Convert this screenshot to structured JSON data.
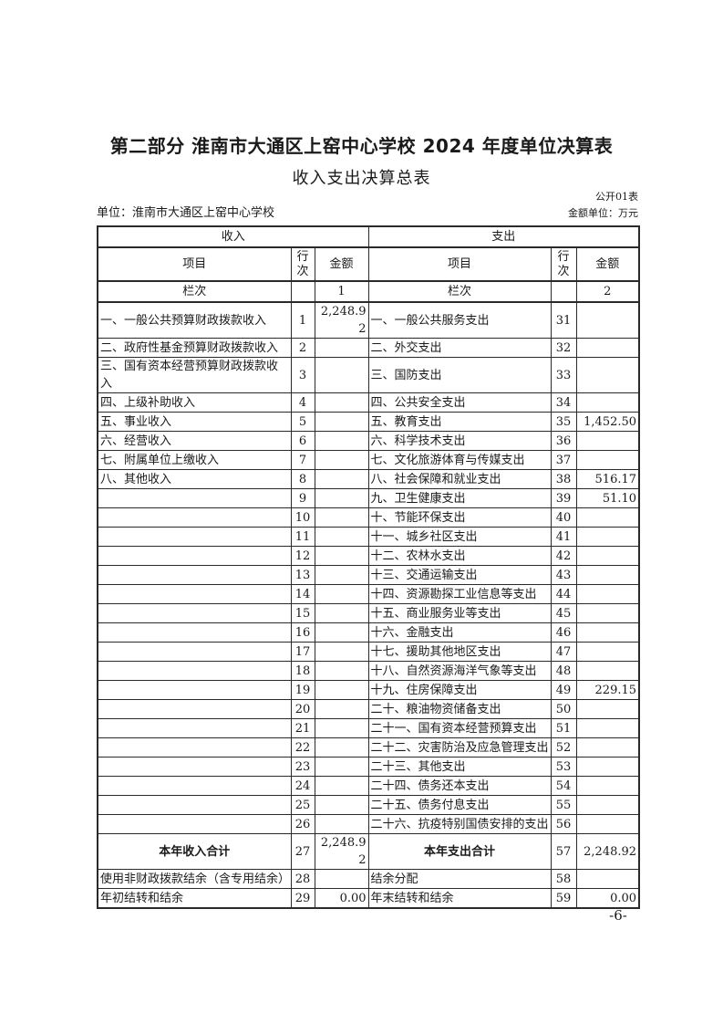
{
  "page": {
    "title": "第二部分 淮南市大通区上窑中心学校 2024 年度单位决算表",
    "subtitle": "收入支出决算总表",
    "doc_code": "公开01表",
    "unit_line": "单位：淮南市大通区上窑中心学校",
    "amount_unit": "金额单位：万元",
    "page_number": "-6-"
  },
  "colors": {
    "text": "#1a1a1a",
    "border": "#2a2a2a",
    "background": "#ffffff"
  },
  "table": {
    "group_headers": [
      "收入",
      "支出"
    ],
    "column_headers": [
      "项目",
      "行次",
      "金额",
      "项目",
      "行次",
      "金额"
    ],
    "guide_row": [
      "栏次",
      "",
      "1",
      "栏次",
      "",
      "2"
    ],
    "total_row_index": 26,
    "rows": [
      [
        "一、一般公共预算财政拨款收入",
        "1",
        "2,248.92",
        "一、一般公共服务支出",
        "31",
        ""
      ],
      [
        "二、政府性基金预算财政拨款收入",
        "2",
        "",
        "二、外交支出",
        "32",
        ""
      ],
      [
        "三、国有资本经营预算财政拨款收入",
        "3",
        "",
        "三、国防支出",
        "33",
        ""
      ],
      [
        "四、上级补助收入",
        "4",
        "",
        "四、公共安全支出",
        "34",
        ""
      ],
      [
        "五、事业收入",
        "5",
        "",
        "五、教育支出",
        "35",
        "1,452.50"
      ],
      [
        "六、经营收入",
        "6",
        "",
        "六、科学技术支出",
        "36",
        ""
      ],
      [
        "七、附属单位上缴收入",
        "7",
        "",
        "七、文化旅游体育与传媒支出",
        "37",
        ""
      ],
      [
        "八、其他收入",
        "8",
        "",
        "八、社会保障和就业支出",
        "38",
        "516.17"
      ],
      [
        "",
        "9",
        "",
        "九、卫生健康支出",
        "39",
        "51.10"
      ],
      [
        "",
        "10",
        "",
        "十、节能环保支出",
        "40",
        ""
      ],
      [
        "",
        "11",
        "",
        "十一、城乡社区支出",
        "41",
        ""
      ],
      [
        "",
        "12",
        "",
        "十二、农林水支出",
        "42",
        ""
      ],
      [
        "",
        "13",
        "",
        "十三、交通运输支出",
        "43",
        ""
      ],
      [
        "",
        "14",
        "",
        "十四、资源勘探工业信息等支出",
        "44",
        ""
      ],
      [
        "",
        "15",
        "",
        "十五、商业服务业等支出",
        "45",
        ""
      ],
      [
        "",
        "16",
        "",
        "十六、金融支出",
        "46",
        ""
      ],
      [
        "",
        "17",
        "",
        "十七、援助其他地区支出",
        "47",
        ""
      ],
      [
        "",
        "18",
        "",
        "十八、自然资源海洋气象等支出",
        "48",
        ""
      ],
      [
        "",
        "19",
        "",
        "十九、住房保障支出",
        "49",
        "229.15"
      ],
      [
        "",
        "20",
        "",
        "二十、粮油物资储备支出",
        "50",
        ""
      ],
      [
        "",
        "21",
        "",
        "二十一、国有资本经营预算支出",
        "51",
        ""
      ],
      [
        "",
        "22",
        "",
        "二十二、灾害防治及应急管理支出",
        "52",
        ""
      ],
      [
        "",
        "23",
        "",
        "二十三、其他支出",
        "53",
        ""
      ],
      [
        "",
        "24",
        "",
        "二十四、债务还本支出",
        "54",
        ""
      ],
      [
        "",
        "25",
        "",
        "二十五、债务付息支出",
        "55",
        ""
      ],
      [
        "",
        "26",
        "",
        "二十六、抗疫特别国债安排的支出",
        "56",
        ""
      ],
      [
        "本年收入合计",
        "27",
        "2,248.92",
        "本年支出合计",
        "57",
        "2,248.92"
      ],
      [
        "使用非财政拨款结余（含专用结余）",
        "28",
        "",
        "结余分配",
        "58",
        ""
      ],
      [
        "年初结转和结余",
        "29",
        "0.00",
        "年末结转和结余",
        "59",
        "0.00"
      ]
    ]
  }
}
